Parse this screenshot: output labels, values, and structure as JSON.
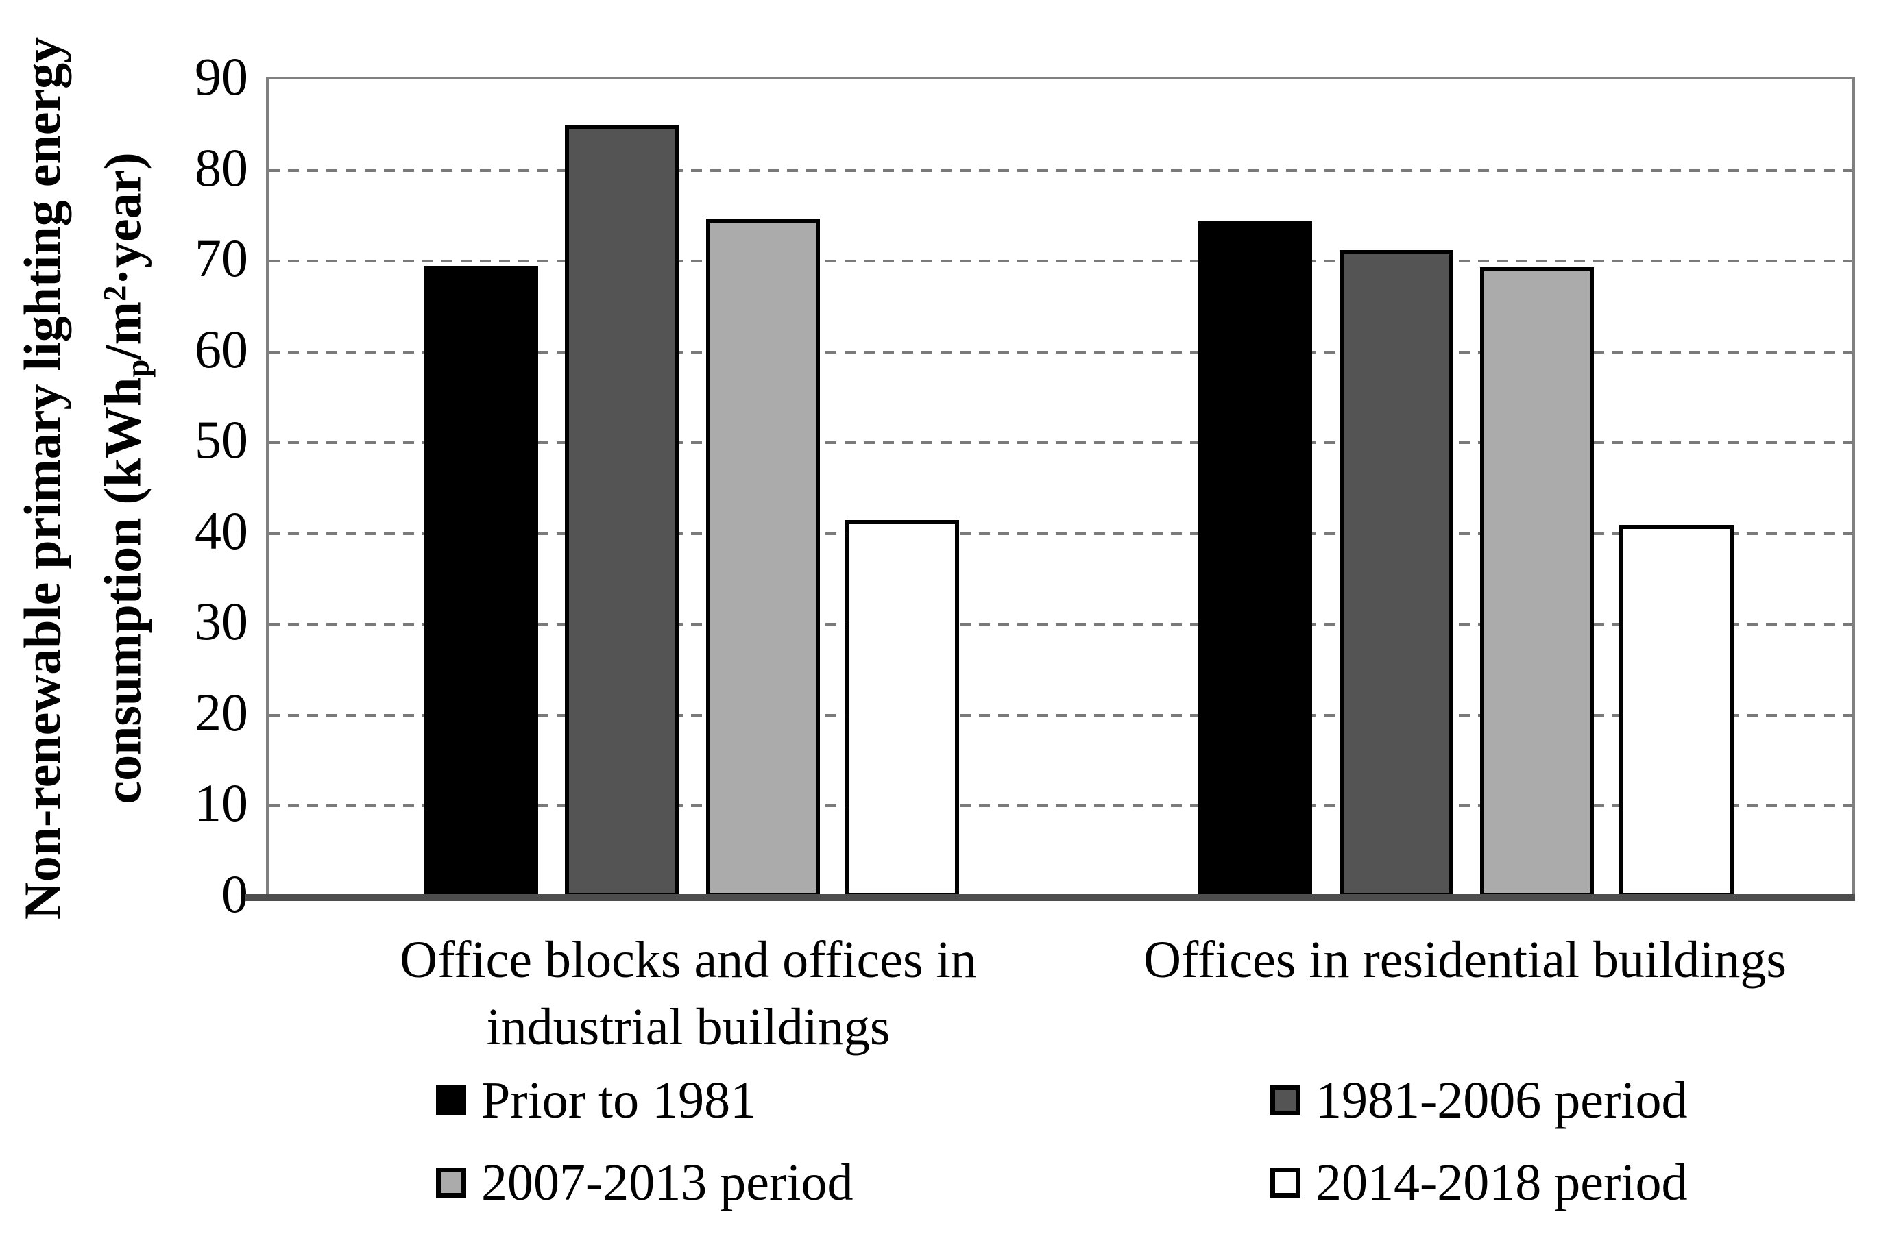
{
  "chart_data": {
    "type": "bar",
    "title": "",
    "ylabel_line1": "Non-renewable primary lighting energy",
    "ylabel_line2": {
      "pre": "consumption (kWh",
      "sub": "p",
      "mid": "/m",
      "sup": "2",
      "post": "·year)"
    },
    "ylim": [
      0,
      90
    ],
    "yticks": [
      0,
      10,
      20,
      30,
      40,
      50,
      60,
      70,
      80,
      90
    ],
    "grid": "horizontal-dashed",
    "legend_position": "bottom-two-columns",
    "categories": [
      "Office blocks and offices in industrial buildings",
      "Offices in residential buildings"
    ],
    "categories_display": [
      [
        "Office blocks and offices in",
        "industrial buildings"
      ],
      [
        "Offices in residential buildings",
        ""
      ]
    ],
    "series": [
      {
        "name": "Prior to 1981",
        "fill": "#000000",
        "values": [
          69.5,
          74.4
        ]
      },
      {
        "name": "1981-2006 period",
        "fill": "#545454",
        "values": [
          85.0,
          71.2
        ]
      },
      {
        "name": "2007-2013 period",
        "fill": "#ababab",
        "values": [
          74.7,
          69.3
        ]
      },
      {
        "name": "2014-2018 period",
        "fill": "#ffffff",
        "values": [
          41.5,
          41.0
        ]
      }
    ],
    "colors": {
      "bar_border": "#000000",
      "frame": "#808080",
      "axis_line": "#4d4d4d",
      "gridline": "#7a7a7a",
      "text": "#000000",
      "background": "#ffffff"
    }
  }
}
